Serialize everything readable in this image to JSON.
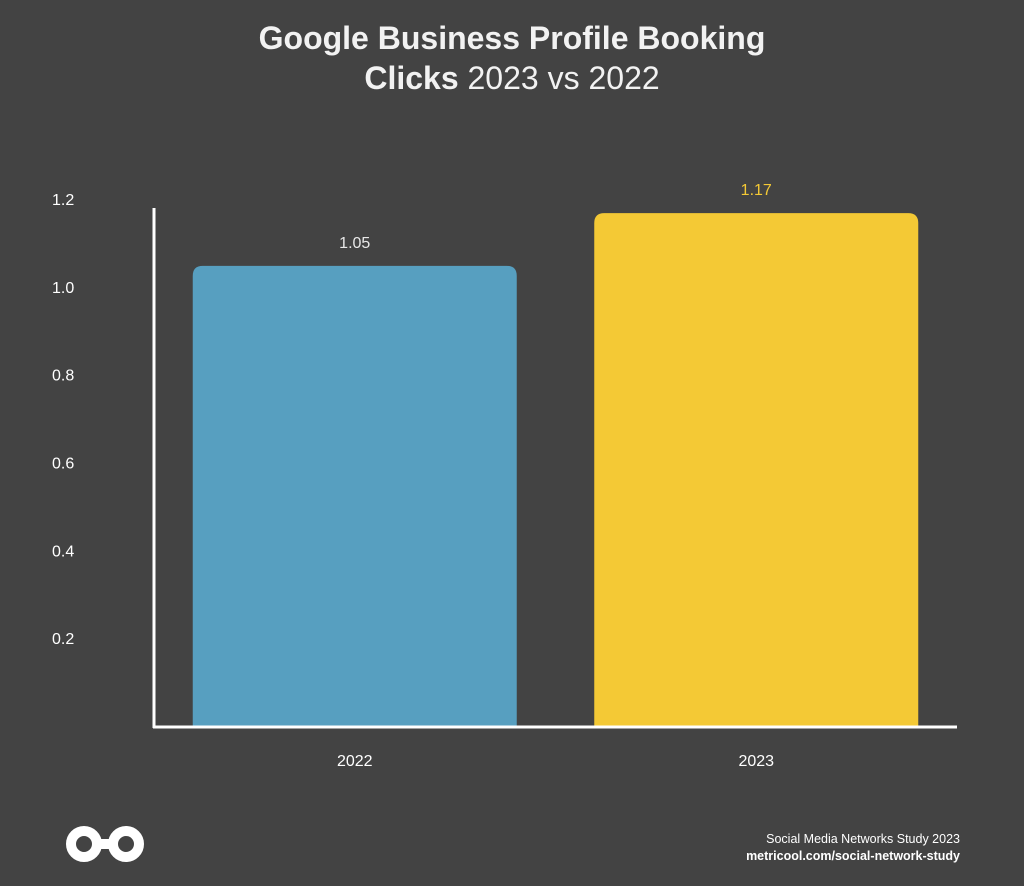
{
  "title": {
    "line1": "Google Business Profile Booking",
    "line2_bold": "Clicks",
    "line2_rest": " 2023 vs 2022"
  },
  "colors": {
    "background": "#434343",
    "bar_2022": "#579fc0",
    "bar_2023": "#f4c935",
    "axis": "#ffffff",
    "label_2023": "#f4c935",
    "label_2022": "#e8e8e8"
  },
  "chart_data": {
    "type": "bar",
    "categories": [
      "2022",
      "2023"
    ],
    "values": [
      1.05,
      1.17
    ],
    "value_labels": [
      "1.05",
      "1.17"
    ],
    "yticks": [
      "1.2",
      "1.0",
      "0.8",
      "0.6",
      "0.4",
      "0.2"
    ],
    "ylim": [
      0,
      1.2
    ],
    "xlabel": "",
    "ylabel": "",
    "grid": false
  },
  "footer": {
    "study": "Social Media Networks Study 2023",
    "url": "metricool.com/social-network-study",
    "logo_icon": "metricool-infinity-icon"
  }
}
